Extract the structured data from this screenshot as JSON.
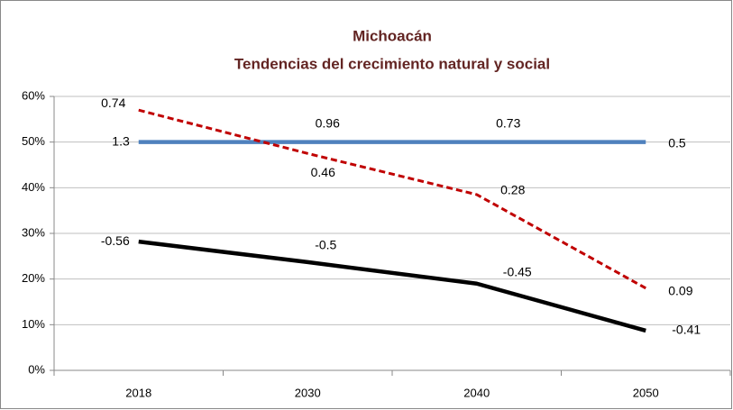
{
  "chart_data": {
    "type": "line",
    "title": "Michoacán",
    "subtitle": "Tendencias del crecimiento natural y social",
    "categories": [
      "2018",
      "2030",
      "2040",
      "2050"
    ],
    "series": [
      {
        "color": "#4f81bd",
        "dash": false,
        "values": [
          50,
          50,
          50,
          50
        ],
        "point_labels": [
          1.3,
          0.96,
          0.73,
          0.5
        ]
      },
      {
        "color": "#c00000",
        "dash": true,
        "values": [
          57,
          47.5,
          38.5,
          18
        ],
        "point_labels": [
          0.74,
          0.46,
          0.28,
          0.09
        ]
      },
      {
        "color": "#000000",
        "dash": false,
        "values": [
          28.2,
          23.7,
          19,
          8.7
        ],
        "point_labels": [
          -0.56,
          -0.5,
          -0.45,
          -0.41
        ]
      }
    ],
    "ylim": [
      0,
      60
    ],
    "yticks": [
      {
        "value": 0,
        "label": "0%"
      },
      {
        "value": 10,
        "label": "10%"
      },
      {
        "value": 20,
        "label": "20%"
      },
      {
        "value": 30,
        "label": "30%"
      },
      {
        "value": 40,
        "label": "40%"
      },
      {
        "value": 50,
        "label": "50%"
      },
      {
        "value": 60,
        "label": "60%"
      }
    ],
    "grid": true
  }
}
